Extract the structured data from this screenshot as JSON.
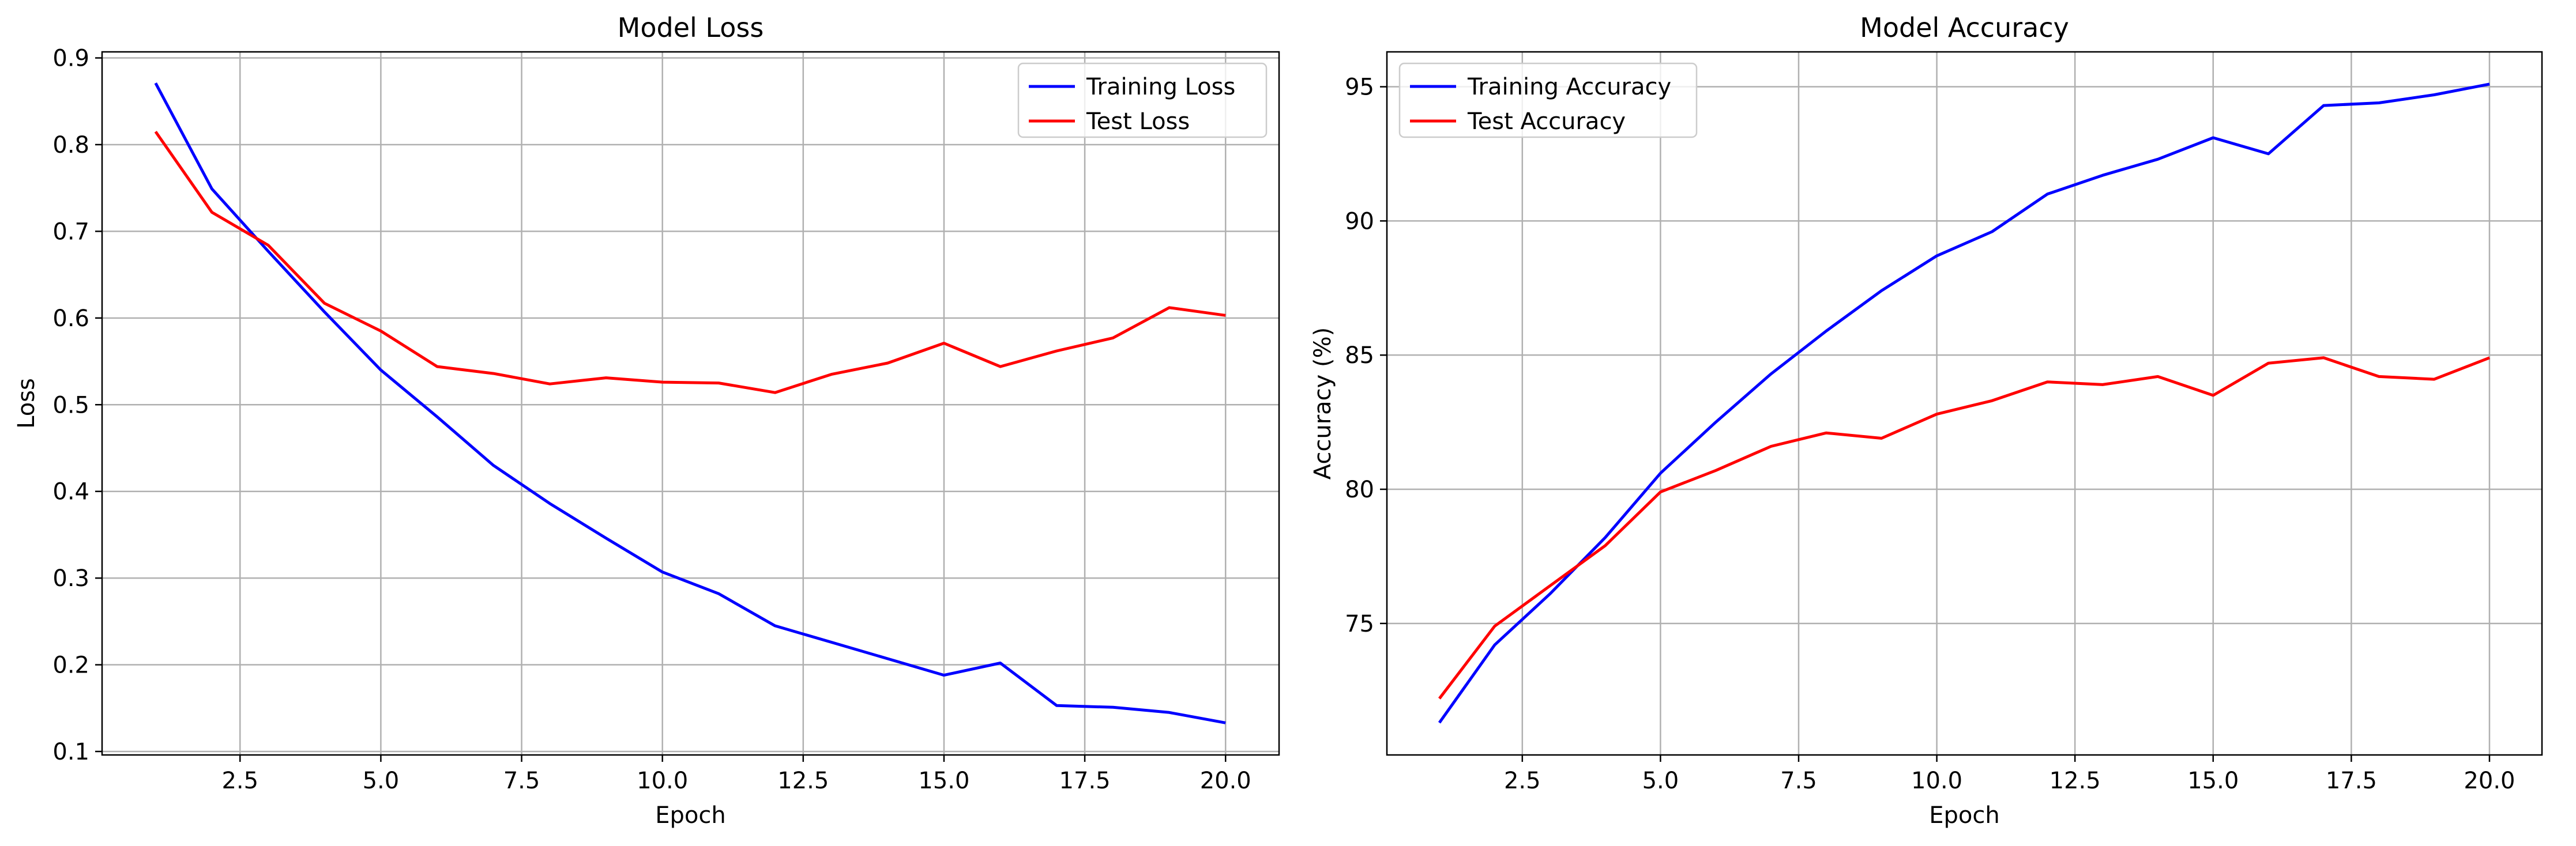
{
  "chart_data": [
    {
      "type": "line",
      "title": "Model Loss",
      "xlabel": "Epoch",
      "ylabel": "Loss",
      "xlim": [
        0.05,
        20.95
      ],
      "ylim": [
        0.096,
        0.907
      ],
      "xticks": [
        2.5,
        5.0,
        7.5,
        10.0,
        12.5,
        15.0,
        17.5,
        20.0
      ],
      "xtick_labels": [
        "2.5",
        "5.0",
        "7.5",
        "10.0",
        "12.5",
        "15.0",
        "17.5",
        "20.0"
      ],
      "yticks": [
        0.1,
        0.2,
        0.3,
        0.4,
        0.5,
        0.6,
        0.7,
        0.8,
        0.9
      ],
      "ytick_labels": [
        "0.1",
        "0.2",
        "0.3",
        "0.4",
        "0.5",
        "0.6",
        "0.7",
        "0.8",
        "0.9"
      ],
      "grid": true,
      "legend": "upper right",
      "x": [
        1,
        2,
        3,
        4,
        5,
        6,
        7,
        8,
        9,
        10,
        11,
        12,
        13,
        14,
        15,
        16,
        17,
        18,
        19,
        20
      ],
      "series": [
        {
          "name": "Training Loss",
          "color": "#0000ff",
          "values": [
            0.871,
            0.749,
            0.677,
            0.607,
            0.54,
            0.486,
            0.43,
            0.386,
            0.346,
            0.307,
            0.282,
            0.245,
            0.226,
            0.207,
            0.188,
            0.202,
            0.153,
            0.151,
            0.145,
            0.133
          ]
        },
        {
          "name": "Test Loss",
          "color": "#ff0000",
          "values": [
            0.815,
            0.722,
            0.684,
            0.617,
            0.585,
            0.544,
            0.536,
            0.524,
            0.531,
            0.526,
            0.525,
            0.514,
            0.535,
            0.548,
            0.571,
            0.544,
            0.562,
            0.577,
            0.612,
            0.603
          ]
        }
      ]
    },
    {
      "type": "line",
      "title": "Model Accuracy",
      "xlabel": "Epoch",
      "ylabel": "Accuracy (%)",
      "xlim": [
        0.05,
        20.95
      ],
      "ylim": [
        70.1,
        96.3
      ],
      "xticks": [
        2.5,
        5.0,
        7.5,
        10.0,
        12.5,
        15.0,
        17.5,
        20.0
      ],
      "xtick_labels": [
        "2.5",
        "5.0",
        "7.5",
        "10.0",
        "12.5",
        "15.0",
        "17.5",
        "20.0"
      ],
      "yticks": [
        75,
        80,
        85,
        90,
        95
      ],
      "ytick_labels": [
        "75",
        "80",
        "85",
        "90",
        "95"
      ],
      "grid": true,
      "legend": "upper left",
      "x": [
        1,
        2,
        3,
        4,
        5,
        6,
        7,
        8,
        9,
        10,
        11,
        12,
        13,
        14,
        15,
        16,
        17,
        18,
        19,
        20
      ],
      "series": [
        {
          "name": "Training Accuracy",
          "color": "#0000ff",
          "values": [
            71.3,
            74.2,
            76.1,
            78.2,
            80.6,
            82.5,
            84.3,
            85.9,
            87.4,
            88.7,
            89.6,
            91.0,
            91.7,
            92.3,
            93.1,
            92.5,
            94.3,
            94.4,
            94.7,
            95.1
          ]
        },
        {
          "name": "Test Accuracy",
          "color": "#ff0000",
          "values": [
            72.2,
            74.9,
            76.4,
            77.9,
            79.9,
            80.7,
            81.6,
            82.1,
            81.9,
            82.8,
            83.3,
            84.0,
            83.9,
            84.2,
            83.5,
            84.7,
            84.9,
            84.2,
            84.1,
            84.9
          ]
        }
      ]
    }
  ]
}
